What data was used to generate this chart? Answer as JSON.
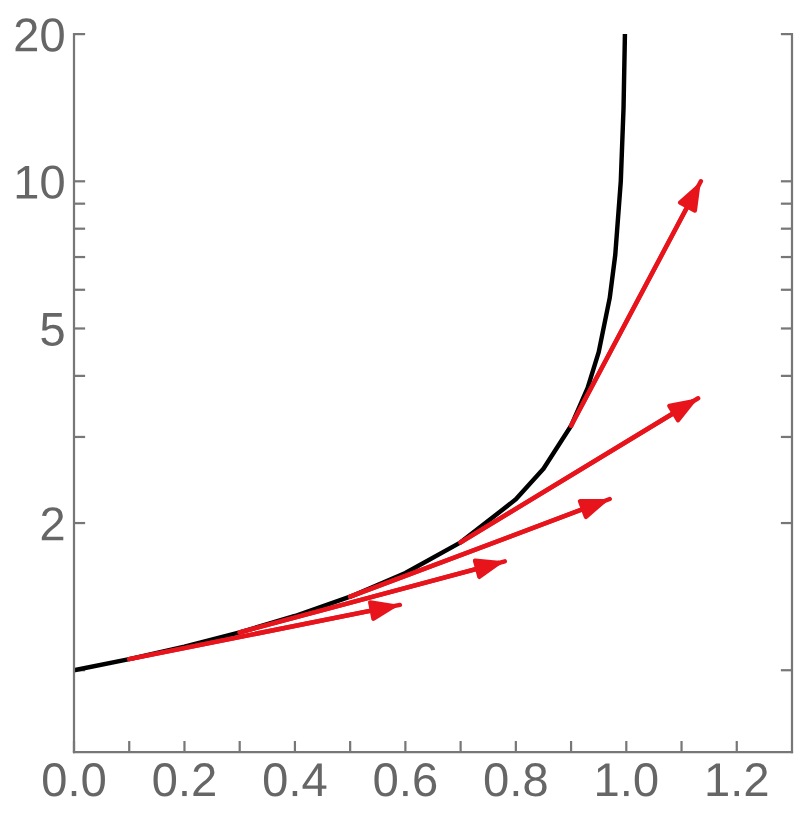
{
  "chart_data": {
    "type": "line",
    "log": "y",
    "xlim": [
      0,
      1.3
    ],
    "ylim": [
      0.68,
      20
    ],
    "xticks": [
      {
        "value": 0,
        "label": "0.0"
      },
      {
        "value": 0.1,
        "label": null
      },
      {
        "value": 0.2,
        "label": "0.2"
      },
      {
        "value": 0.3,
        "label": null
      },
      {
        "value": 0.4,
        "label": "0.4"
      },
      {
        "value": 0.5,
        "label": null
      },
      {
        "value": 0.6,
        "label": "0.6"
      },
      {
        "value": 0.7,
        "label": null
      },
      {
        "value": 0.8,
        "label": "0.8"
      },
      {
        "value": 0.9,
        "label": null
      },
      {
        "value": 1.0,
        "label": "1.0"
      },
      {
        "value": 1.1,
        "label": null
      },
      {
        "value": 1.2,
        "label": "1.2"
      }
    ],
    "yticks": [
      {
        "value": 1,
        "label": null
      },
      2,
      {
        "value": 3,
        "label": null
      },
      {
        "value": 4,
        "label": null
      },
      5,
      {
        "value": 6,
        "label": null
      },
      {
        "value": 7,
        "label": null
      },
      {
        "value": 8,
        "label": null
      },
      {
        "value": 9,
        "label": null
      },
      10,
      20
    ],
    "grid": false,
    "legend": false,
    "series": [
      {
        "color": "#000000",
        "marker": "none",
        "x": [
          0,
          0.1,
          0.2,
          0.3,
          0.4,
          0.5,
          0.6,
          0.7,
          0.8,
          0.85,
          0.9,
          0.93,
          0.95,
          0.97,
          0.98,
          0.99,
          0.995,
          0.9975
        ],
        "values": [
          1,
          1.054,
          1.118,
          1.195,
          1.291,
          1.414,
          1.581,
          1.826,
          2.236,
          2.582,
          3.162,
          3.78,
          4.472,
          5.774,
          7.071,
          10,
          14.14,
          20
        ]
      },
      {
        "color": "#e8141c",
        "x": [
          0.1,
          0.59
        ],
        "values": [
          1.054,
          1.36
        ]
      },
      {
        "color": "#e8141c",
        "x": [
          0.3,
          0.78
        ],
        "values": [
          1.195,
          1.67
        ]
      },
      {
        "color": "#e8141c",
        "x": [
          0.5,
          0.97
        ],
        "values": [
          1.414,
          2.24
        ]
      },
      {
        "color": "#e8141c",
        "x": [
          0.7,
          1.13
        ],
        "values": [
          1.826,
          3.6
        ]
      },
      {
        "color": "#e8141c",
        "x": [
          0.9,
          1.135
        ],
        "values": [
          3.162,
          10
        ]
      }
    ]
  }
}
